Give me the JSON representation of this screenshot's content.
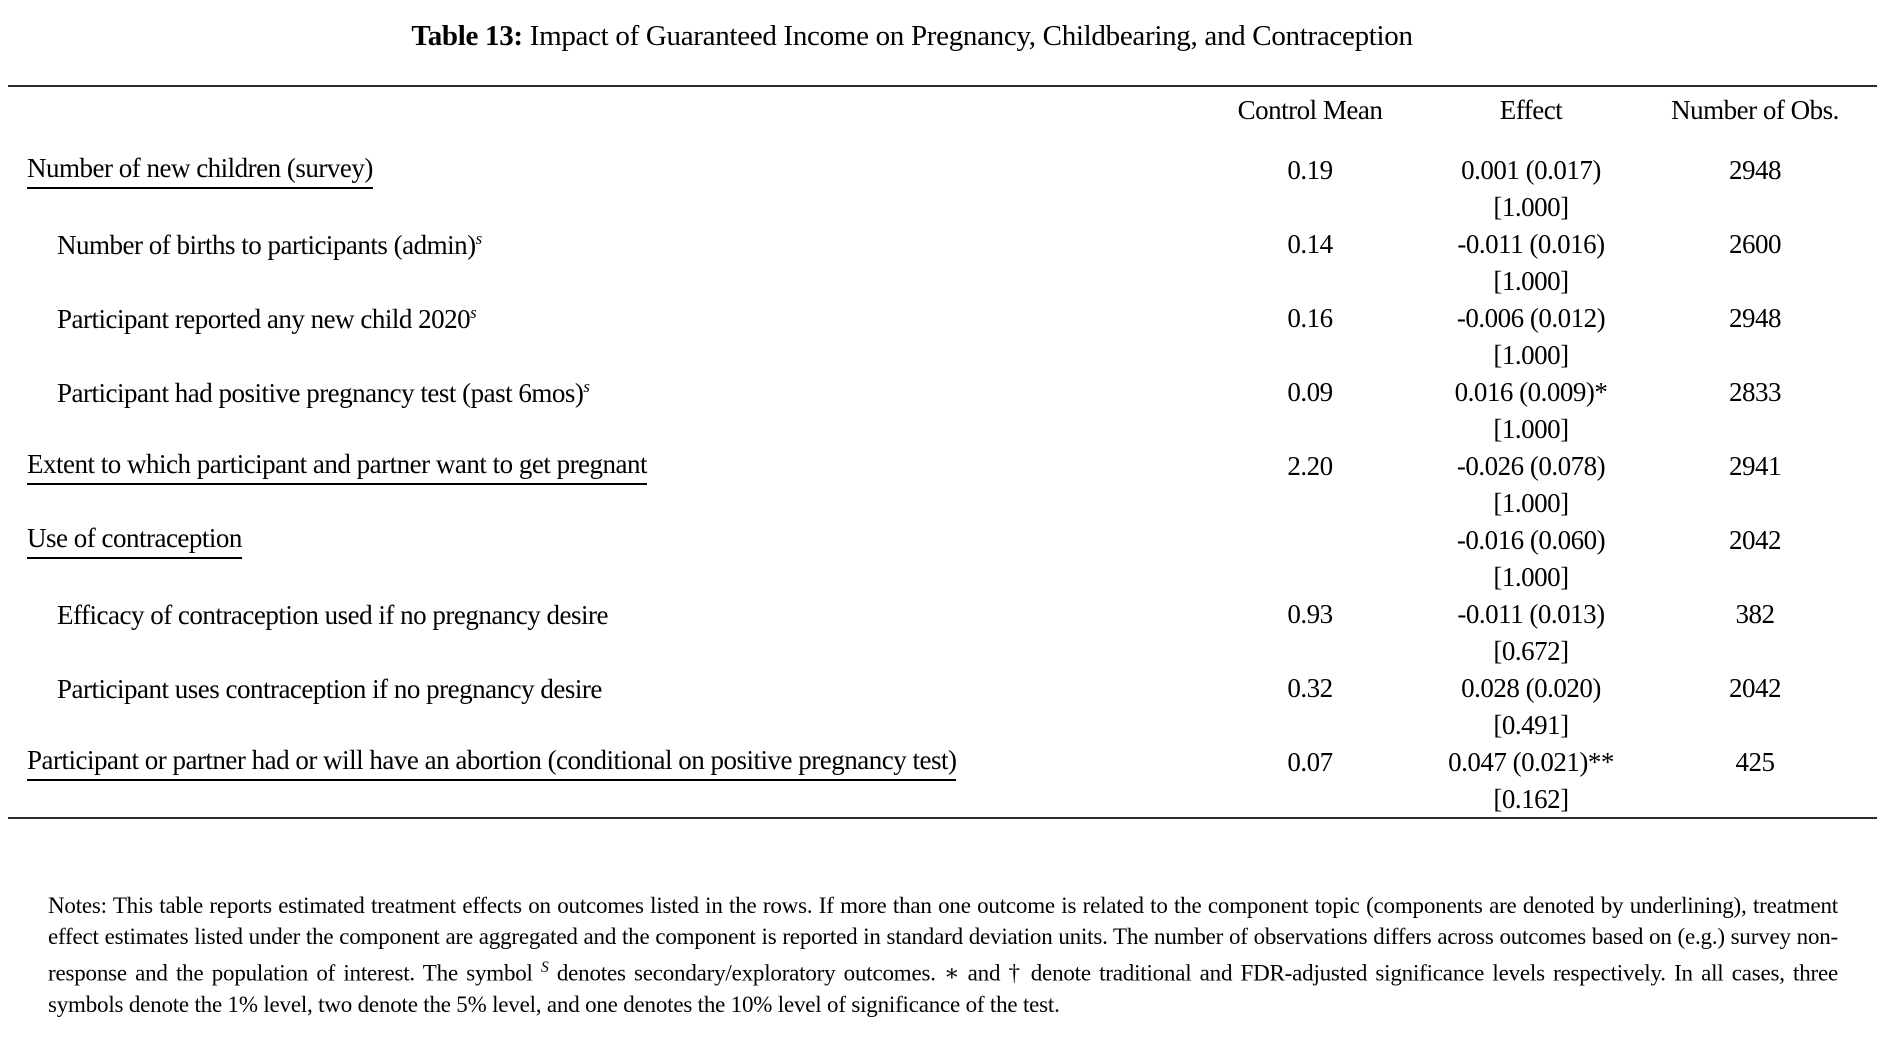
{
  "title": {
    "prefix": "Table 13:",
    "text": " Impact of Guaranteed Income on Pregnancy, Childbearing, and Contraception"
  },
  "table": {
    "headers": {
      "control_mean": "Control Mean",
      "effect": "Effect",
      "obs": "Number of Obs."
    },
    "rows": [
      {
        "label": "Number of new children (survey)",
        "sup": "",
        "underline": true,
        "indent": false,
        "control_mean": "0.19",
        "effect": "0.001 (0.017)",
        "q": "[1.000]",
        "obs": "2948"
      },
      {
        "label": "Number of births to participants (admin)",
        "sup": "s",
        "underline": false,
        "indent": true,
        "control_mean": "0.14",
        "effect": "-0.011 (0.016)",
        "q": "[1.000]",
        "obs": "2600"
      },
      {
        "label": "Participant reported any new child 2020",
        "sup": "s",
        "underline": false,
        "indent": true,
        "control_mean": "0.16",
        "effect": "-0.006 (0.012)",
        "q": "[1.000]",
        "obs": "2948"
      },
      {
        "label": "Participant had positive pregnancy test (past 6mos)",
        "sup": "s",
        "underline": false,
        "indent": true,
        "control_mean": "0.09",
        "effect": "0.016 (0.009)*",
        "q": "[1.000]",
        "obs": "2833"
      },
      {
        "label": "Extent to which participant and partner want to get pregnant",
        "sup": "",
        "underline": true,
        "indent": false,
        "control_mean": "2.20",
        "effect": "-0.026 (0.078)",
        "q": "[1.000]",
        "obs": "2941"
      },
      {
        "label": "Use of contraception",
        "sup": "",
        "underline": true,
        "indent": false,
        "control_mean": "",
        "effect": "-0.016 (0.060)",
        "q": "[1.000]",
        "obs": "2042"
      },
      {
        "label": "Efficacy of contraception used if no pregnancy desire",
        "sup": "",
        "underline": false,
        "indent": true,
        "control_mean": "0.93",
        "effect": "-0.011 (0.013)",
        "q": "[0.672]",
        "obs": "382"
      },
      {
        "label": "Participant uses contraception if no pregnancy desire",
        "sup": "",
        "underline": false,
        "indent": true,
        "control_mean": "0.32",
        "effect": "0.028 (0.020)",
        "q": "[0.491]",
        "obs": "2042"
      },
      {
        "label": "Participant or partner had or will have an abortion (conditional on positive pregnancy test)",
        "sup": "",
        "underline": true,
        "indent": false,
        "control_mean": "0.07",
        "effect": "0.047 (0.021)**",
        "q": "[0.162]",
        "obs": "425"
      }
    ]
  },
  "notes": {
    "segments": [
      {
        "text": "Notes: This table reports estimated treatment effects on outcomes listed in the rows. If more than one outcome is related to the component topic (components are denoted by underlining), treatment effect estimates listed under the component are aggregated and the component is reported in standard deviation units. The number of observations differs across outcomes based on (e.g.) survey non-response and the population of interest. The symbol "
      },
      {
        "sup": "S"
      },
      {
        "text": " denotes secondary/exploratory outcomes. ∗ and † denote traditional and FDR-adjusted significance levels respectively. In all cases, three symbols denote the 1% level, two denote the 5% level, and one denotes the 10% level of significance of the test."
      }
    ]
  }
}
